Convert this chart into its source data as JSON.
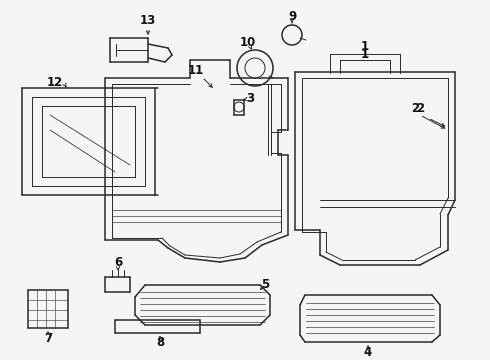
{
  "bg_color": "#f5f5f5",
  "line_color": "#2a2a2a",
  "fig_w": 4.9,
  "fig_h": 3.6,
  "dpi": 100,
  "lw_main": 1.1,
  "lw_inner": 0.7,
  "lw_stripe": 0.45,
  "label_fs": 8.5,
  "label_color": "#111111"
}
